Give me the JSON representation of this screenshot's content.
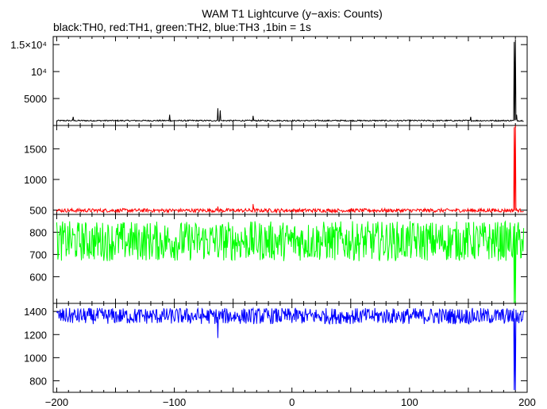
{
  "chart_data": [
    {
      "type": "line",
      "title": "WAM T1 Lightcurve (y−axis: Counts)",
      "subtitle": "black:TH0, red:TH1, green:TH2, blue:TH3 ,1bin = 1s",
      "xlim": [
        -203,
        200
      ],
      "ylim": [
        0,
        16500
      ],
      "y_ticks": [
        {
          "value": 5000,
          "label": "5000"
        },
        {
          "value": 10000,
          "label": "10⁴"
        },
        {
          "value": 15000,
          "label": "1.5×10⁴"
        }
      ],
      "color": "#000000",
      "series": [
        {
          "baseline": 900,
          "noise": 120,
          "spikes": [
            [
              -186,
              1600
            ],
            [
              -104,
              2000
            ],
            [
              -63,
              3200
            ],
            [
              -61,
              2800
            ],
            [
              -33,
              1800
            ],
            [
              152,
              1600
            ],
            [
              189,
              15500
            ],
            [
              190,
              16000
            ],
            [
              191,
              2000
            ]
          ]
        }
      ]
    },
    {
      "type": "line",
      "xlim": [
        -203,
        200
      ],
      "ylim": [
        430,
        1880
      ],
      "y_ticks": [
        {
          "value": 500,
          "label": "500"
        },
        {
          "value": 1000,
          "label": "1000"
        },
        {
          "value": 1500,
          "label": "1500"
        }
      ],
      "color": "#ff0000",
      "series": [
        {
          "baseline": 495,
          "noise": 30,
          "spikes": [
            [
              -63,
              560
            ],
            [
              -33,
              600
            ],
            [
              189,
              1850
            ],
            [
              190,
              1880
            ]
          ]
        }
      ]
    },
    {
      "type": "line",
      "xlim": [
        -203,
        200
      ],
      "ylim": [
        480,
        880
      ],
      "y_ticks": [
        {
          "value": 600,
          "label": "600"
        },
        {
          "value": 700,
          "label": "700"
        },
        {
          "value": 800,
          "label": "800"
        }
      ],
      "color": "#00ff00",
      "series": [
        {
          "baseline": 760,
          "noise": 90,
          "spikes": [
            [
              -63,
              690
            ],
            [
              189,
              480
            ],
            [
              190,
              480
            ]
          ]
        }
      ]
    },
    {
      "type": "line",
      "xlim": [
        -203,
        200
      ],
      "ylim": [
        700,
        1470
      ],
      "y_ticks": [
        {
          "value": 800,
          "label": "800"
        },
        {
          "value": 1000,
          "label": "1000"
        },
        {
          "value": 1200,
          "label": "1200"
        },
        {
          "value": 1400,
          "label": "1400"
        }
      ],
      "color": "#0000ff",
      "series": [
        {
          "baseline": 1360,
          "noise": 70,
          "spikes": [
            [
              -63,
              1170
            ],
            [
              189,
              720
            ],
            [
              190,
              720
            ]
          ]
        }
      ]
    }
  ],
  "x_axis": {
    "ticks": [
      {
        "value": -200,
        "label": "−200"
      },
      {
        "value": -100,
        "label": "−100"
      },
      {
        "value": 0,
        "label": "0"
      },
      {
        "value": 100,
        "label": "100"
      },
      {
        "value": 200,
        "label": "200"
      }
    ]
  }
}
